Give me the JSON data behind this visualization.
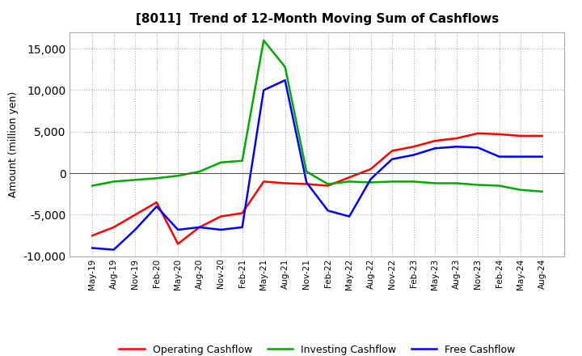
{
  "title": "[8011]  Trend of 12-Month Moving Sum of Cashflows",
  "ylabel": "Amount (million yen)",
  "ylim": [
    -10000,
    17000
  ],
  "yticks": [
    -10000,
    -5000,
    0,
    5000,
    10000,
    15000
  ],
  "background_color": "#ffffff",
  "grid_color": "#999999",
  "x_labels": [
    "May-19",
    "Aug-19",
    "Nov-19",
    "Feb-20",
    "May-20",
    "Aug-20",
    "Nov-20",
    "Feb-21",
    "May-21",
    "Aug-21",
    "Nov-21",
    "Feb-22",
    "May-22",
    "Aug-22",
    "Nov-22",
    "Feb-23",
    "May-23",
    "Aug-23",
    "Nov-23",
    "Feb-24",
    "May-24",
    "Aug-24"
  ],
  "operating": [
    -7500,
    -6500,
    -5000,
    -3500,
    -8500,
    -6500,
    -5200,
    -4800,
    -1000,
    -1200,
    -1300,
    -1500,
    -500,
    500,
    2700,
    3200,
    3900,
    4200,
    4800,
    4700,
    4500,
    4500
  ],
  "investing": [
    -1500,
    -1000,
    -800,
    -600,
    -300,
    200,
    1300,
    1500,
    16000,
    12800,
    200,
    -1300,
    -1000,
    -1100,
    -1000,
    -1000,
    -1200,
    -1200,
    -1400,
    -1500,
    -2000,
    -2200
  ],
  "free": [
    -9000,
    -9200,
    -6800,
    -4000,
    -6800,
    -6500,
    -6800,
    -6500,
    10000,
    11200,
    -1100,
    -4500,
    -5200,
    -700,
    1700,
    2200,
    3000,
    3200,
    3100,
    2000,
    2000,
    2000
  ],
  "op_color": "#ff0000",
  "inv_color": "#00aa00",
  "free_color": "#0000ff"
}
